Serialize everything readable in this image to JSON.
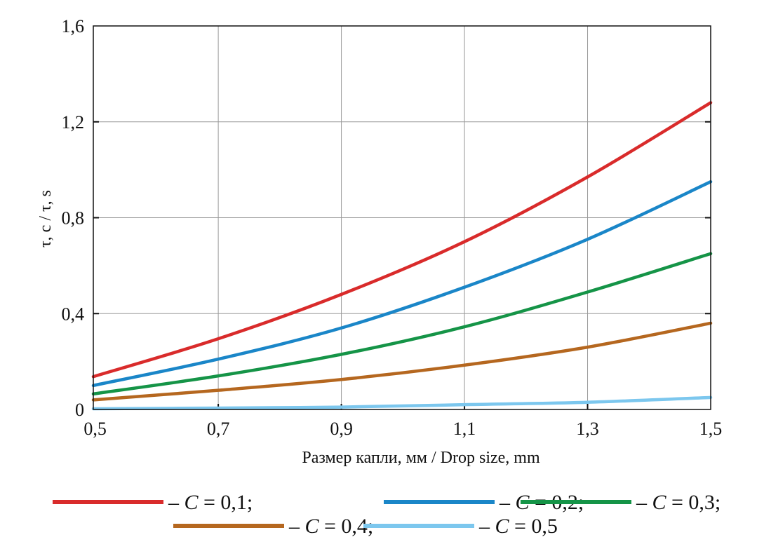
{
  "chart_data": {
    "type": "line",
    "title": "",
    "xlabel": "Размер капли, мм / Drop size, mm",
    "ylabel": "τ, c / τ, s",
    "xlim": [
      0.497,
      1.5
    ],
    "ylim": [
      0,
      1.6
    ],
    "grid": true,
    "legend_placement": "bottom",
    "x_ticks": [
      0.5,
      0.7,
      0.9,
      1.1,
      1.3,
      1.5
    ],
    "x_tick_labels": [
      "0,5",
      "0,7",
      "0,9",
      "1,1",
      "1,3",
      "1,5"
    ],
    "y_ticks": [
      0,
      0.4,
      0.8,
      1.2,
      1.6
    ],
    "y_tick_labels": [
      "0",
      "0,4",
      "0,8",
      "1,2",
      "1,6"
    ],
    "x": [
      0.497,
      0.7,
      0.9,
      1.1,
      1.3,
      1.5
    ],
    "series": [
      {
        "name": "C = 0,1",
        "color": "#d92b2b",
        "values": [
          0.137,
          0.295,
          0.48,
          0.7,
          0.97,
          1.28
        ]
      },
      {
        "name": "C = 0,2",
        "color": "#1a86c8",
        "values": [
          0.1,
          0.21,
          0.34,
          0.51,
          0.71,
          0.95
        ]
      },
      {
        "name": "C = 0,3",
        "color": "#159447",
        "values": [
          0.065,
          0.14,
          0.23,
          0.345,
          0.49,
          0.65
        ]
      },
      {
        "name": "C = 0,4",
        "color": "#b5671f",
        "values": [
          0.04,
          0.08,
          0.125,
          0.185,
          0.26,
          0.36
        ]
      },
      {
        "name": "C = 0,5",
        "color": "#7cc7ee",
        "values": [
          0.003,
          0.006,
          0.01,
          0.02,
          0.03,
          0.05
        ]
      }
    ],
    "legend": [
      {
        "dash": "– ",
        "symbol": "C",
        "rest": " = 0,1;"
      },
      {
        "dash": "– ",
        "symbol": "C",
        "rest": " = 0,2;"
      },
      {
        "dash": "– ",
        "symbol": "C",
        "rest": " = 0,3;"
      },
      {
        "dash": "– ",
        "symbol": "C",
        "rest": " = 0,4;"
      },
      {
        "dash": "– ",
        "symbol": "C",
        "rest": " = 0,5"
      }
    ]
  }
}
